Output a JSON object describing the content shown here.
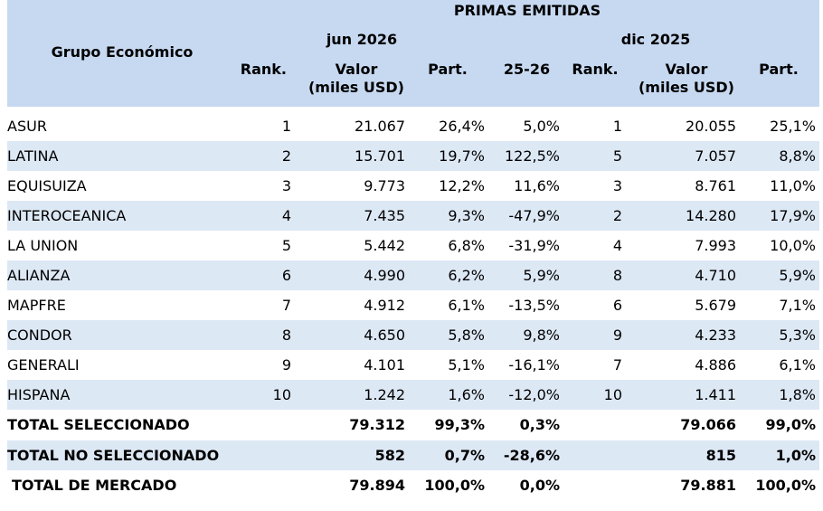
{
  "header": {
    "title": "PRIMAS EMITIDAS",
    "group_label": "Grupo Económico",
    "period_current": "jun 2026",
    "period_prior": "dic 2025",
    "rank_label": "Rank.",
    "valor_line1": "Valor",
    "valor_line2": "(miles USD)",
    "part_label": "Part.",
    "var_label": "25-26"
  },
  "rows": [
    {
      "name": "ASUR",
      "rank_cur": "1",
      "val_cur": "21.067",
      "part_cur": "26,4%",
      "var": "5,0%",
      "rank_prev": "1",
      "val_prev": "20.055",
      "part_prev": "25,1%"
    },
    {
      "name": "LATINA",
      "rank_cur": "2",
      "val_cur": "15.701",
      "part_cur": "19,7%",
      "var": "122,5%",
      "rank_prev": "5",
      "val_prev": "7.057",
      "part_prev": "8,8%"
    },
    {
      "name": "EQUISUIZA",
      "rank_cur": "3",
      "val_cur": "9.773",
      "part_cur": "12,2%",
      "var": "11,6%",
      "rank_prev": "3",
      "val_prev": "8.761",
      "part_prev": "11,0%"
    },
    {
      "name": "INTEROCEANICA",
      "rank_cur": "4",
      "val_cur": "7.435",
      "part_cur": "9,3%",
      "var": "-47,9%",
      "rank_prev": "2",
      "val_prev": "14.280",
      "part_prev": "17,9%"
    },
    {
      "name": "LA UNION",
      "rank_cur": "5",
      "val_cur": "5.442",
      "part_cur": "6,8%",
      "var": "-31,9%",
      "rank_prev": "4",
      "val_prev": "7.993",
      "part_prev": "10,0%"
    },
    {
      "name": "ALIANZA",
      "rank_cur": "6",
      "val_cur": "4.990",
      "part_cur": "6,2%",
      "var": "5,9%",
      "rank_prev": "8",
      "val_prev": "4.710",
      "part_prev": "5,9%"
    },
    {
      "name": "MAPFRE",
      "rank_cur": "7",
      "val_cur": "4.912",
      "part_cur": "6,1%",
      "var": "-13,5%",
      "rank_prev": "6",
      "val_prev": "5.679",
      "part_prev": "7,1%"
    },
    {
      "name": "CONDOR",
      "rank_cur": "8",
      "val_cur": "4.650",
      "part_cur": "5,8%",
      "var": "9,8%",
      "rank_prev": "9",
      "val_prev": "4.233",
      "part_prev": "5,3%"
    },
    {
      "name": "GENERALI",
      "rank_cur": "9",
      "val_cur": "4.101",
      "part_cur": "5,1%",
      "var": "-16,1%",
      "rank_prev": "7",
      "val_prev": "4.886",
      "part_prev": "6,1%"
    },
    {
      "name": "HISPANA",
      "rank_cur": "10",
      "val_cur": "1.242",
      "part_cur": "1,6%",
      "var": "-12,0%",
      "rank_prev": "10",
      "val_prev": "1.411",
      "part_prev": "1,8%"
    }
  ],
  "totals": [
    {
      "name": "TOTAL SELECCIONADO",
      "rank_cur": "",
      "val_cur": "79.312",
      "part_cur": "99,3%",
      "var": "0,3%",
      "rank_prev": "",
      "val_prev": "79.066",
      "part_prev": "99,0%"
    },
    {
      "name": "TOTAL NO SELECCIONADO",
      "rank_cur": "",
      "val_cur": "582",
      "part_cur": "0,7%",
      "var": "-28,6%",
      "rank_prev": "",
      "val_prev": "815",
      "part_prev": "1,0%"
    },
    {
      "name": "TOTAL DE MERCADO",
      "rank_cur": "",
      "val_cur": "79.894",
      "part_cur": "100,0%",
      "var": "0,0%",
      "rank_prev": "",
      "val_prev": "79.881",
      "part_prev": "100,0%"
    }
  ],
  "colors": {
    "header_bg": "#c7d9f1",
    "row_shade": "#dde8f5"
  }
}
